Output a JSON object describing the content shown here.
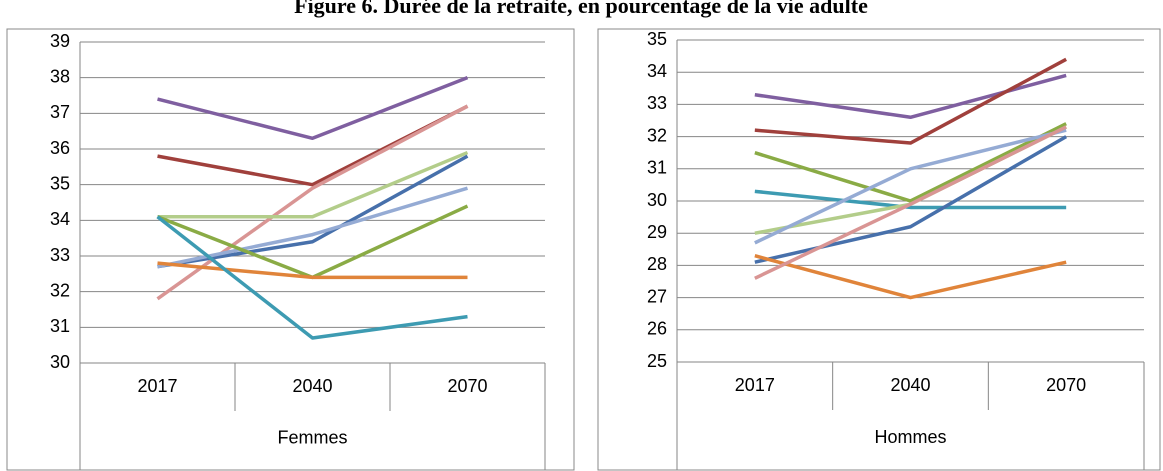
{
  "title": "Figure 6. Durée de la retraite, en pourcentage de la vie adulte",
  "chart_data": [
    {
      "type": "line",
      "group": "Femmes",
      "categories": [
        "2017",
        "2040",
        "2070"
      ],
      "ylim": [
        30,
        39
      ],
      "yticks": [
        30,
        31,
        32,
        33,
        34,
        35,
        36,
        37,
        38,
        39
      ],
      "grid": true,
      "series": [
        {
          "color": "#7f5fa0",
          "values": [
            37.4,
            36.3,
            38.0
          ]
        },
        {
          "color": "#a0403c",
          "values": [
            35.8,
            35.0,
            37.2
          ]
        },
        {
          "color": "#d99594",
          "values": [
            31.8,
            34.9,
            37.2
          ]
        },
        {
          "color": "#b3cd8a",
          "values": [
            34.1,
            34.1,
            35.9
          ]
        },
        {
          "color": "#4770ab",
          "values": [
            32.7,
            33.4,
            35.8
          ]
        },
        {
          "color": "#95abd4",
          "values": [
            32.7,
            33.6,
            34.9
          ]
        },
        {
          "color": "#8aab45",
          "values": [
            34.1,
            32.4,
            34.4
          ]
        },
        {
          "color": "#e0843a",
          "values": [
            32.8,
            32.4,
            32.4
          ]
        },
        {
          "color": "#3d9bb2",
          "values": [
            34.1,
            30.7,
            31.3
          ]
        }
      ]
    },
    {
      "type": "line",
      "group": "Hommes",
      "categories": [
        "2017",
        "2040",
        "2070"
      ],
      "ylim": [
        25,
        35
      ],
      "yticks": [
        25,
        26,
        27,
        28,
        29,
        30,
        31,
        32,
        33,
        34,
        35
      ],
      "grid": true,
      "series": [
        {
          "color": "#7f5fa0",
          "values": [
            33.3,
            32.6,
            33.9
          ]
        },
        {
          "color": "#a0403c",
          "values": [
            32.2,
            31.8,
            34.4
          ]
        },
        {
          "color": "#8aab45",
          "values": [
            31.5,
            30.0,
            32.4
          ]
        },
        {
          "color": "#3d9bb2",
          "values": [
            30.3,
            29.8,
            29.8
          ]
        },
        {
          "color": "#b3cd8a",
          "values": [
            29.0,
            29.9,
            32.3
          ]
        },
        {
          "color": "#95abd4",
          "values": [
            28.7,
            31.0,
            32.2
          ]
        },
        {
          "color": "#4770ab",
          "values": [
            28.1,
            29.2,
            32.0
          ]
        },
        {
          "color": "#e0843a",
          "values": [
            28.3,
            27.0,
            28.1
          ]
        },
        {
          "color": "#d99594",
          "values": [
            27.6,
            29.9,
            32.3
          ]
        }
      ]
    }
  ]
}
